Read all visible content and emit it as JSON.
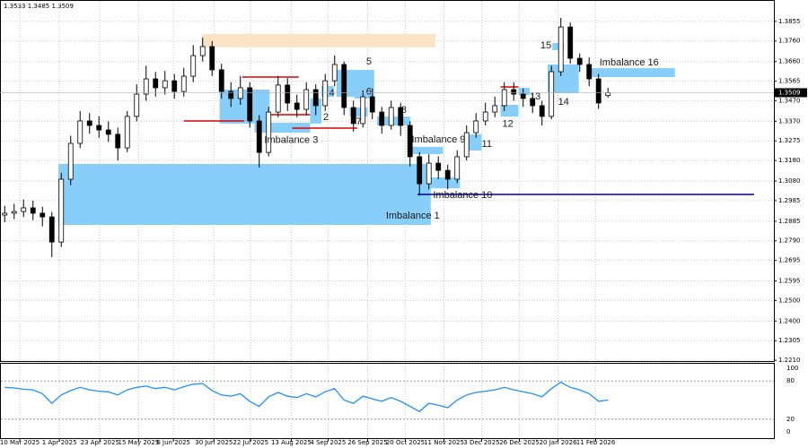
{
  "chart_data": {
    "type": "candlestick",
    "xlim": [
      -0.5,
      81.6
    ],
    "ylim": [
      1.2206,
      1.3959
    ],
    "grid": true,
    "xticks": [
      {
        "value": 1.6,
        "label": "10 Mar 2025"
      },
      {
        "value": 5.8,
        "label": "1 Apr 2025"
      },
      {
        "value": 10.1,
        "label": "23 Apr 2025"
      },
      {
        "value": 14.2,
        "label": "15 May 2025"
      },
      {
        "value": 17.9,
        "label": "6 Jun 2025"
      },
      {
        "value": 22.2,
        "label": "30 Jun 2025"
      },
      {
        "value": 26.1,
        "label": "22 Jul 2025"
      },
      {
        "value": 30.4,
        "label": "13 Aug 2025"
      },
      {
        "value": 34.3,
        "label": "4 Sep 2025"
      },
      {
        "value": 38.5,
        "label": "26 Sep 2025"
      },
      {
        "value": 42.5,
        "label": "20 Oct 2025"
      },
      {
        "value": 46.6,
        "label": "11 Nov 2025"
      },
      {
        "value": 50.6,
        "label": "3 Dec 2025"
      },
      {
        "value": 54.6,
        "label": "26 Dec 2025"
      },
      {
        "value": 58.7,
        "label": "20 Jan 2026"
      },
      {
        "value": 62.7,
        "label": "11 Feb 2026"
      }
    ],
    "yticks": [
      1.3855,
      {
        "value": 1.376,
        "label": "1.3760"
      },
      {
        "value": 1.366,
        "label": "1.3660"
      },
      1.3565,
      {
        "value": 1.347,
        "label": "1.3470"
      },
      {
        "value": 1.337,
        "label": "1.3370"
      },
      1.3275,
      {
        "value": 1.318,
        "label": "1.3180"
      },
      {
        "value": 1.308,
        "label": "1.3080"
      },
      1.2985,
      1.2885,
      {
        "value": 1.279,
        "label": "1.2790"
      },
      1.2695,
      1.2595,
      {
        "value": 1.25,
        "label": "1.2500"
      },
      {
        "value": 1.24,
        "label": "1.2400"
      },
      1.2305,
      {
        "value": 1.221,
        "label": "1.2210"
      }
    ],
    "open": [
      1.2915,
      1.2924,
      1.2932,
      1.295,
      1.2924,
      1.2906,
      1.2784,
      1.3089,
      1.3263,
      1.3372,
      1.335,
      1.3328,
      1.3307,
      1.3241,
      1.3394,
      1.3502,
      1.3576,
      1.3533,
      1.3567,
      1.3515,
      1.3589,
      1.3689,
      1.3733,
      1.362,
      1.3515,
      1.3481,
      1.3533,
      1.3372,
      1.3219,
      1.3415,
      1.3546,
      1.3459,
      1.3428,
      1.3524,
      1.3446,
      1.3567,
      1.3646,
      1.3437,
      1.3359,
      1.3489,
      1.3415,
      1.335,
      1.3437,
      1.335,
      1.3198,
      1.3067,
      1.3167,
      1.3132,
      1.3089,
      1.3198,
      1.3315,
      1.3372,
      1.3415,
      1.3446,
      1.3524,
      1.3502,
      1.3481,
      1.3446,
      1.3394,
      1.3611,
      1.3828,
      1.3676,
      1.3646,
      1.3576,
      1.3495
    ],
    "high": [
      1.296,
      1.297,
      1.299,
      1.2985,
      1.2955,
      1.293,
      1.312,
      1.33,
      1.342,
      1.341,
      1.3395,
      1.337,
      1.334,
      1.342,
      1.355,
      1.364,
      1.361,
      1.3615,
      1.36,
      1.363,
      1.374,
      1.3776,
      1.376,
      1.365,
      1.356,
      1.359,
      1.356,
      1.34,
      1.344,
      1.359,
      1.358,
      1.35,
      1.356,
      1.355,
      1.36,
      1.369,
      1.366,
      1.347,
      1.352,
      1.353,
      1.344,
      1.347,
      1.346,
      1.337,
      1.322,
      1.321,
      1.32,
      1.316,
      1.323,
      1.335,
      1.341,
      1.346,
      1.349,
      1.356,
      1.356,
      1.353,
      1.351,
      1.347,
      1.364,
      1.3872,
      1.385,
      1.37,
      1.368,
      1.36,
      1.3533
    ],
    "low": [
      1.288,
      1.2895,
      1.2905,
      1.289,
      1.286,
      1.2711,
      1.276,
      1.306,
      1.324,
      1.331,
      1.329,
      1.327,
      1.318,
      1.322,
      1.337,
      1.347,
      1.349,
      1.35,
      1.348,
      1.349,
      1.356,
      1.366,
      1.359,
      1.348,
      1.344,
      1.345,
      1.334,
      1.3146,
      1.32,
      1.339,
      1.342,
      1.339,
      1.34,
      1.34,
      1.342,
      1.354,
      1.34,
      1.332,
      1.334,
      1.338,
      1.331,
      1.333,
      1.33,
      1.315,
      1.301,
      1.304,
      1.309,
      1.304,
      1.307,
      1.318,
      1.329,
      1.335,
      1.339,
      1.342,
      1.347,
      1.344,
      1.341,
      1.335,
      1.338,
      1.359,
      1.365,
      1.361,
      1.354,
      1.343,
      1.3485
    ],
    "close": [
      1.2924,
      1.2932,
      1.295,
      1.2924,
      1.2906,
      1.2784,
      1.3089,
      1.3263,
      1.3372,
      1.335,
      1.3328,
      1.3307,
      1.3241,
      1.3394,
      1.3502,
      1.3576,
      1.3533,
      1.3567,
      1.3515,
      1.3589,
      1.3689,
      1.3733,
      1.362,
      1.3515,
      1.3481,
      1.3533,
      1.3372,
      1.3219,
      1.3415,
      1.3546,
      1.3459,
      1.3428,
      1.3524,
      1.3446,
      1.3567,
      1.3646,
      1.3437,
      1.3359,
      1.3489,
      1.3415,
      1.335,
      1.3437,
      1.335,
      1.3198,
      1.3067,
      1.3167,
      1.3132,
      1.3089,
      1.3198,
      1.3315,
      1.3372,
      1.3415,
      1.3446,
      1.3524,
      1.3502,
      1.3481,
      1.3446,
      1.3394,
      1.3611,
      1.3828,
      1.3676,
      1.3646,
      1.3576,
      1.3459,
      1.3509
    ],
    "zones": [
      {
        "label": "Imbalance 1",
        "x0": 5.7,
        "x1": 45.2,
        "y0": 1.2867,
        "y1": 1.3163,
        "color": "#87cefa"
      },
      {
        "x0": 20.9,
        "x1": 45.7,
        "y0": 1.3729,
        "y1": 1.3794,
        "color": "#fbe3c7"
      },
      {
        "label": "Imbalance 3",
        "x0": 26.5,
        "x1": 32.4,
        "y0": 1.3315,
        "y1": 1.3363,
        "color": "#87cefa"
      },
      {
        "x0": 22.8,
        "x1": 28.1,
        "y0": 1.3359,
        "y1": 1.3524,
        "color": "#87cefa"
      },
      {
        "label": "2",
        "x0": 32.4,
        "x1": 33.6,
        "y0": 1.3359,
        "y1": 1.3481,
        "color": "#87cefa"
      },
      {
        "label": "4",
        "x0": 33.6,
        "x1": 34.9,
        "y0": 1.3489,
        "y1": 1.3541,
        "color": "#87cefa"
      },
      {
        "label": "5",
        "x0": 35.2,
        "x1": 39.2,
        "y0": 1.3489,
        "y1": 1.362,
        "color": "#87cefa"
      },
      {
        "label": "6",
        "x0": 37.1,
        "x1": 39.0,
        "y0": 1.348,
        "y1": 1.3546,
        "color": "#87cefa"
      },
      {
        "label": "7",
        "x0": 36.6,
        "x1": 38.5,
        "y0": 1.3393,
        "y1": 1.3437,
        "color": "#87cefa"
      },
      {
        "label": "8",
        "x0": 39.5,
        "x1": 43.0,
        "y0": 1.335,
        "y1": 1.3393,
        "color": "#87cefa"
      },
      {
        "label": "Imbalance 9",
        "x0": 42.8,
        "x1": 46.5,
        "y0": 1.3211,
        "y1": 1.3246,
        "color": "#87cefa"
      },
      {
        "label": "Imbalance 10",
        "x0": 45.2,
        "x1": 48.3,
        "y0": 1.3045,
        "y1": 1.3098,
        "color": "#87cefa"
      },
      {
        "label": "11",
        "x0": 49.0,
        "x1": 50.6,
        "y0": 1.3228,
        "y1": 1.3306,
        "color": "#87cefa"
      },
      {
        "label": "12",
        "x0": 52.6,
        "x1": 54.5,
        "y0": 1.3393,
        "y1": 1.345,
        "color": "#87cefa"
      },
      {
        "label": "13",
        "x0": 54.5,
        "x1": 55.7,
        "y0": 1.3498,
        "y1": 1.3533,
        "color": "#87cefa"
      },
      {
        "label": "14",
        "x0": 57.6,
        "x1": 60.9,
        "y0": 1.3507,
        "y1": 1.3646,
        "color": "#87cefa"
      },
      {
        "label": "15",
        "x0": 58.1,
        "x1": 59.3,
        "y0": 1.3715,
        "y1": 1.375,
        "color": "#87cefa"
      },
      {
        "label": "Imbalance 16",
        "x0": 61.9,
        "x1": 71.1,
        "y0": 1.3585,
        "y1": 1.3628,
        "color": "#87cefa"
      }
    ],
    "levels": [
      {
        "y": 1.3585,
        "x0": 25.2,
        "x1": 31.2,
        "color": "#e00000"
      },
      {
        "y": 1.3372,
        "x0": 19.0,
        "x1": 25.4,
        "color": "#e00000"
      },
      {
        "y": 1.3402,
        "x0": 28.1,
        "x1": 32.4,
        "color": "#e00000"
      },
      {
        "y": 1.3337,
        "x0": 30.5,
        "x1": 37.4,
        "color": "#e00000"
      },
      {
        "y": 1.3537,
        "x0": 52.6,
        "x1": 54.5,
        "color": "#e00000"
      },
      {
        "y": 1.3015,
        "x0": 43.8,
        "x1": 79.5,
        "color": "#00008b"
      }
    ],
    "indicator": {
      "color": "#1e90ff",
      "ylim": [
        0,
        100
      ],
      "yticks": [
        100,
        80,
        20,
        0
      ],
      "values": [
        70,
        69,
        67,
        66,
        60,
        45,
        58,
        65,
        70,
        66,
        64,
        63,
        58,
        66,
        70,
        72,
        68,
        70,
        66,
        71,
        75,
        76,
        65,
        58,
        56,
        60,
        48,
        40,
        55,
        62,
        56,
        54,
        60,
        55,
        63,
        68,
        50,
        45,
        56,
        52,
        48,
        54,
        48,
        40,
        32,
        45,
        42,
        38,
        50,
        58,
        62,
        64,
        66,
        70,
        66,
        63,
        60,
        55,
        68,
        78,
        70,
        66,
        60,
        48,
        50
      ]
    }
  }
}
